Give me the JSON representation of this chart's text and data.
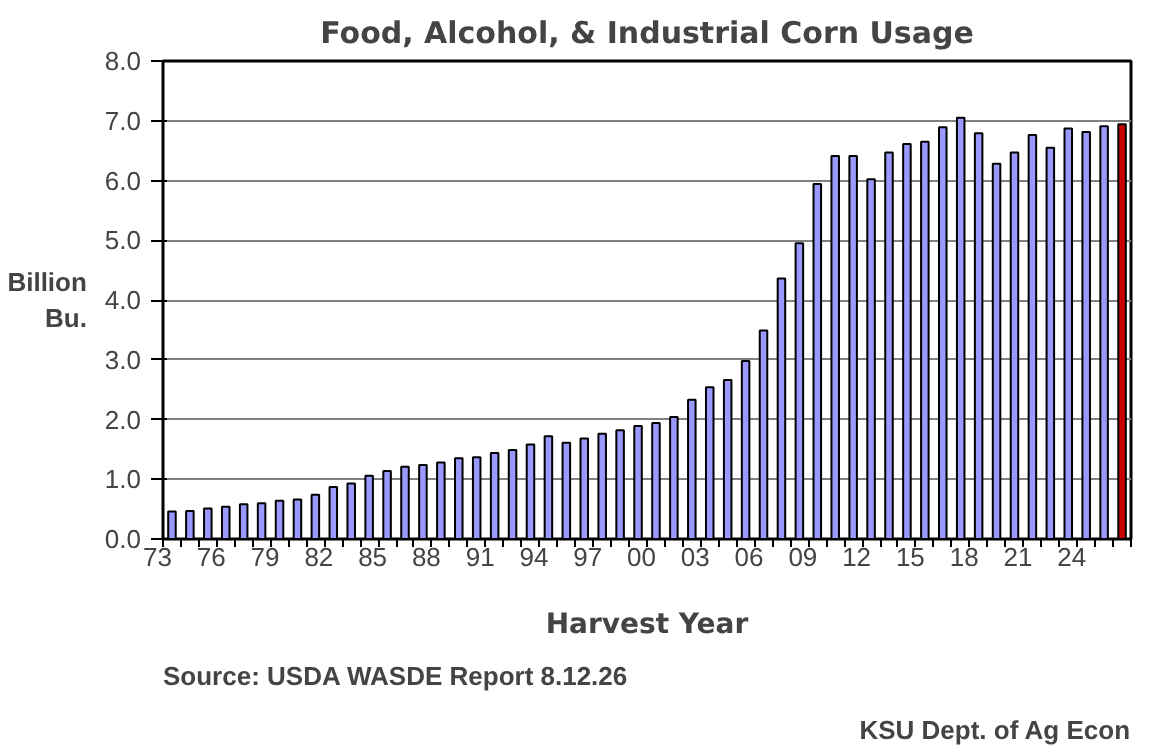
{
  "chart_data": {
    "type": "bar",
    "title": "Food, Alcohol, & Industrial Corn Usage",
    "xlabel": "Harvest Year",
    "ylabel": "Billion\nBu.",
    "categories": [
      "73",
      null,
      null,
      "76",
      null,
      null,
      "79",
      null,
      null,
      "82",
      null,
      null,
      "85",
      null,
      null,
      "88",
      null,
      null,
      "91",
      null,
      null,
      "94",
      null,
      null,
      "97",
      null,
      null,
      "00",
      null,
      null,
      "03",
      null,
      null,
      "06",
      null,
      null,
      "09",
      null,
      null,
      "12",
      null,
      null,
      "15",
      null,
      null,
      "18",
      null,
      null,
      "21",
      null,
      null,
      "24",
      null,
      null
    ],
    "values": [
      0.46,
      0.47,
      0.51,
      0.54,
      0.58,
      0.6,
      0.64,
      0.66,
      0.74,
      0.87,
      0.93,
      1.06,
      1.14,
      1.21,
      1.24,
      1.28,
      1.35,
      1.37,
      1.44,
      1.49,
      1.58,
      1.72,
      1.61,
      1.68,
      1.76,
      1.82,
      1.89,
      1.94,
      2.04,
      2.33,
      2.54,
      2.66,
      2.98,
      3.49,
      4.36,
      4.95,
      5.94,
      6.41,
      6.41,
      6.02,
      6.47,
      6.61,
      6.65,
      6.89,
      7.05,
      6.79,
      6.28,
      6.47,
      6.76,
      6.55,
      6.87,
      6.81,
      6.91,
      6.94
    ],
    "colors": [
      "#9999ff",
      "#9999ff",
      "#9999ff",
      "#9999ff",
      "#9999ff",
      "#9999ff",
      "#9999ff",
      "#9999ff",
      "#9999ff",
      "#9999ff",
      "#9999ff",
      "#9999ff",
      "#9999ff",
      "#9999ff",
      "#9999ff",
      "#9999ff",
      "#9999ff",
      "#9999ff",
      "#9999ff",
      "#9999ff",
      "#9999ff",
      "#9999ff",
      "#9999ff",
      "#9999ff",
      "#9999ff",
      "#9999ff",
      "#9999ff",
      "#9999ff",
      "#9999ff",
      "#9999ff",
      "#9999ff",
      "#9999ff",
      "#9999ff",
      "#9999ff",
      "#9999ff",
      "#9999ff",
      "#9999ff",
      "#9999ff",
      "#9999ff",
      "#9999ff",
      "#9999ff",
      "#9999ff",
      "#9999ff",
      "#9999ff",
      "#9999ff",
      "#9999ff",
      "#9999ff",
      "#9999ff",
      "#9999ff",
      "#9999ff",
      "#9999ff",
      "#9999ff",
      "#9999ff",
      "#cc0000"
    ],
    "ylim": [
      0,
      8
    ],
    "yticks": [
      {
        "value": 0,
        "label": "0.0"
      },
      {
        "value": 1,
        "label": "1.0"
      },
      {
        "value": 2,
        "label": "2.0"
      },
      {
        "value": 3,
        "label": "3.0"
      },
      {
        "value": 4,
        "label": "4.0"
      },
      {
        "value": 5,
        "label": "5.0"
      },
      {
        "value": 6,
        "label": "6.0"
      },
      {
        "value": 7,
        "label": "7.0"
      },
      {
        "value": 8,
        "label": "8.0"
      }
    ],
    "grid": "y",
    "annotations": [
      "Source:  USDA WASDE Report 8.12.26",
      "KSU Dept. of Ag Econ"
    ]
  }
}
